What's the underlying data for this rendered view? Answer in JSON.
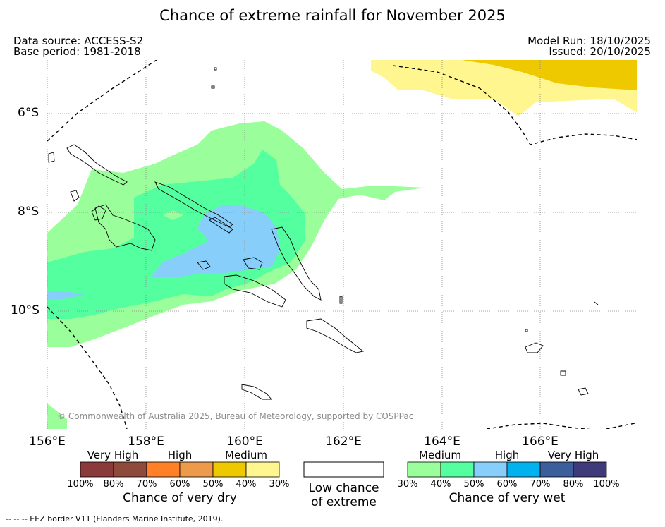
{
  "title": "Chance of extreme rainfall for November 2025",
  "data_source": "Data source: ACCESS-S2",
  "base_period": "Base period: 1981-2018",
  "model_run": "Model Run: 18/10/2025",
  "issued": "Issued: 20/10/2025",
  "lat_labels": [
    "6°S",
    "8°S",
    "10°S"
  ],
  "lon_labels": [
    "156°E",
    "158°E",
    "160°E",
    "162°E",
    "164°E",
    "166°E"
  ],
  "copyright": "© Commonwealth of Australia 2025, Bureau of Meteorology, supported by COSPPac",
  "legend": {
    "dry": {
      "categories": [
        "Very High",
        "High",
        "Medium"
      ],
      "colors": [
        "#8b3a3a",
        "#8e4b3b",
        "#ff8026",
        "#ee9a4b",
        "#eec900",
        "#fff68f"
      ],
      "ticks": [
        "100%",
        "80%",
        "70%",
        "60%",
        "50%",
        "40%",
        "30%"
      ],
      "caption": "Chance of very dry"
    },
    "low": {
      "color": "#ffffff",
      "caption_line1": "Low chance",
      "caption_line2": "of extreme"
    },
    "wet": {
      "categories": [
        "Medium",
        "High",
        "Very High"
      ],
      "colors": [
        "#9aff9a",
        "#54ff9f",
        "#87cefa",
        "#00b2ee",
        "#3a5f9b",
        "#3f3b7a"
      ],
      "ticks": [
        "30%",
        "40%",
        "50%",
        "60%",
        "70%",
        "80%",
        "100%"
      ],
      "caption": "Chance of very wet"
    }
  },
  "footnote": "-- -- -- EEZ border V11 (Flanders Marine Institute, 2019)."
}
